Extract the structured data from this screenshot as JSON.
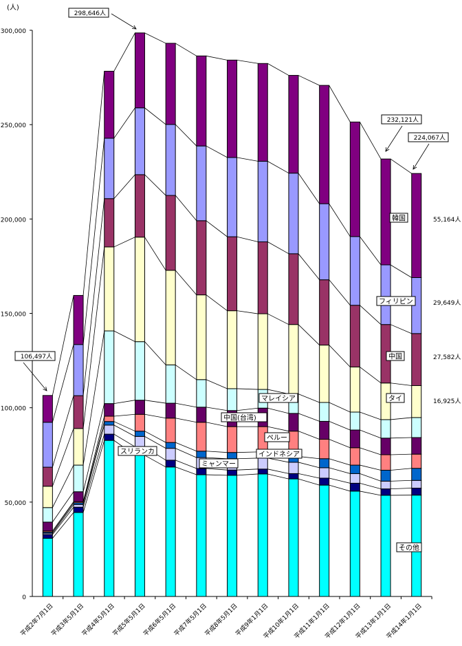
{
  "chart_data": {
    "type": "bar",
    "stacked": true,
    "ylabel": "(人)",
    "ylim": [
      0,
      300000
    ],
    "yticks": [
      "0",
      "50,000",
      "100,000",
      "150,000",
      "200,000",
      "250,000",
      "300,000"
    ],
    "grid": false,
    "categories": [
      "平成2年7月1日",
      "平成3年5月1日",
      "平成4年5月1日",
      "平成5年5月1日",
      "平成6年5月1日",
      "平成7年5月1日",
      "平成8年5月1日",
      "平成9年1月1日",
      "平成10年1月1日",
      "平成11年1月1日",
      "平成12年1月1日",
      "平成13年1月1日",
      "平成14年1月1日"
    ],
    "series": [
      {
        "name": "その他",
        "color": "#00FFFF",
        "values": [
          30800,
          44500,
          82700,
          74800,
          68600,
          64500,
          64200,
          64900,
          62300,
          59000,
          55800,
          53600,
          53700
        ]
      },
      {
        "name": "スリランカ",
        "color": "#000080",
        "values": [
          2000,
          2800,
          3300,
          4500,
          3600,
          3300,
          2800,
          2600,
          2800,
          3700,
          4200,
          3400,
          3700
        ]
      },
      {
        "name": "ミャンマー",
        "color": "#CCCCFF",
        "values": [
          700,
          1400,
          4800,
          5500,
          6300,
          5800,
          6000,
          5800,
          6000,
          5500,
          5100,
          4100,
          4100
        ]
      },
      {
        "name": "インドネシア",
        "color": "#0066CC",
        "values": [
          600,
          900,
          1900,
          2800,
          3100,
          3400,
          3300,
          3300,
          3100,
          4800,
          4500,
          5800,
          6400
        ]
      },
      {
        "name": "ペルー",
        "color": "#FF8080",
        "values": [
          600,
          600,
          2800,
          8900,
          12900,
          15300,
          13700,
          13400,
          13400,
          10300,
          9200,
          8200,
          7500
        ]
      },
      {
        "name": "中国(台湾)",
        "color": "#660066",
        "values": [
          4700,
          5300,
          6700,
          7500,
          7900,
          8000,
          8500,
          9800,
          9400,
          9500,
          9400,
          8800,
          8800
        ]
      },
      {
        "name": "マレイシア",
        "color": "#CCFFFF",
        "values": [
          7700,
          14100,
          38500,
          31000,
          20300,
          14600,
          11600,
          9900,
          10300,
          10000,
          9500,
          9800,
          10600
        ]
      },
      {
        "name": "タイ",
        "color": "#FFFFCC",
        "values": [
          11300,
          19400,
          44500,
          55400,
          50100,
          44900,
          41300,
          40100,
          36800,
          30400,
          23900,
          19400,
          16925
        ]
      },
      {
        "name": "中国",
        "color": "#993366",
        "values": [
          10100,
          17400,
          25600,
          33100,
          39700,
          39300,
          39200,
          38100,
          37500,
          34600,
          32700,
          31000,
          27582
        ]
      },
      {
        "name": "フィリピン",
        "color": "#9999FF",
        "values": [
          23800,
          27100,
          32000,
          35400,
          37600,
          39600,
          42000,
          42700,
          42700,
          40300,
          36400,
          31600,
          29649
        ]
      },
      {
        "name": "韓国",
        "color": "#800080",
        "values": [
          14200,
          26000,
          35500,
          39700,
          43000,
          47700,
          51600,
          51800,
          51800,
          62700,
          60700,
          56100,
          55164
        ]
      }
    ],
    "annotations": {
      "totals": [
        {
          "category": "平成2年7月1日",
          "text": "106,497人"
        },
        {
          "category": "平成5年5月1日",
          "text": "298,646人"
        },
        {
          "category": "平成13年1月1日",
          "text": "232,121人"
        },
        {
          "category": "平成14年1月1日",
          "text": "224,067人"
        }
      ],
      "latest_values": [
        {
          "series": "韓国",
          "text": "55,164人"
        },
        {
          "series": "フィリピン",
          "text": "29,649人"
        },
        {
          "series": "中国",
          "text": "27,582人"
        },
        {
          "series": "タイ",
          "text": "16,925人"
        }
      ]
    }
  }
}
